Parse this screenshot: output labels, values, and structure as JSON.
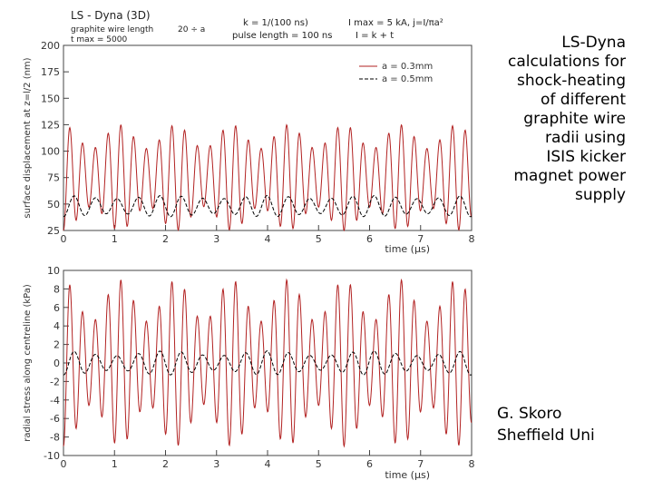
{
  "caption": {
    "line1": "LS-Dyna",
    "line2": "calculations for",
    "line3": "shock-heating",
    "line4": "of different",
    "line5": "graphite wire",
    "line6": "radii using",
    "line7": "ISIS kicker",
    "line8": "magnet power",
    "line9": "supply"
  },
  "credit": {
    "line1": "G. Skoro",
    "line2": "Sheffield Uni"
  },
  "header": {
    "program": "LS - Dyna (3D)",
    "wire_length": "graphite wire length",
    "wire_length_value": "20 ÷ a",
    "t_max": "t max = 5000",
    "t_step": "k = 1/(100 ns)",
    "pulse_length": "pulse length = 100 ns",
    "i_max": "I max = 5 kA, j=I/πa²",
    "i_form": "I = k + t"
  },
  "chart_data": [
    {
      "type": "line",
      "xlabel": "time (µs)",
      "ylabel": "surface displacement at z=l/2 (nm)",
      "xlim": [
        0,
        8
      ],
      "ylim": [
        25,
        200
      ],
      "xticks": [
        "0",
        "1",
        "2",
        "3",
        "4",
        "5",
        "6",
        "7",
        "8"
      ],
      "yticks": [
        "25",
        "50",
        "75",
        "100",
        "125",
        "150",
        "175",
        "200"
      ],
      "grid": false,
      "legend": "top-right",
      "series": [
        {
          "name": "a = 0.3mm",
          "color": "#b22222",
          "dash": "solid",
          "mean": 75,
          "amplitude": 50,
          "period_us": 0.25,
          "amp_min": 0.55,
          "mod_period_us": 1.1
        },
        {
          "name": "a = 0.5mm",
          "color": "#000000",
          "dash": "dashed",
          "mean": 48,
          "amplitude": 10,
          "period_us": 0.42,
          "amp_min": 0.7,
          "mod_period_us": 2.0
        }
      ]
    },
    {
      "type": "line",
      "xlabel": "time (µs)",
      "ylabel": "radial stress along centreline (kPa)",
      "xlim": [
        0,
        8
      ],
      "ylim": [
        -10,
        10
      ],
      "xticks": [
        "0",
        "1",
        "2",
        "3",
        "4",
        "5",
        "6",
        "7",
        "8"
      ],
      "yticks": [
        "-10",
        "-8",
        "-6",
        "-4",
        "-2",
        "0",
        "2",
        "4",
        "6",
        "8",
        "10"
      ],
      "grid": false,
      "series": [
        {
          "name": "a = 0.3mm",
          "color": "#b22222",
          "dash": "solid",
          "mean": 0,
          "amplitude": 9,
          "period_us": 0.25,
          "amp_min": 0.5,
          "mod_period_us": 1.1
        },
        {
          "name": "a = 0.5mm",
          "color": "#000000",
          "dash": "dashed",
          "mean": 0,
          "amplitude": 1.3,
          "period_us": 0.42,
          "amp_min": 0.6,
          "mod_period_us": 2.0
        }
      ]
    }
  ]
}
